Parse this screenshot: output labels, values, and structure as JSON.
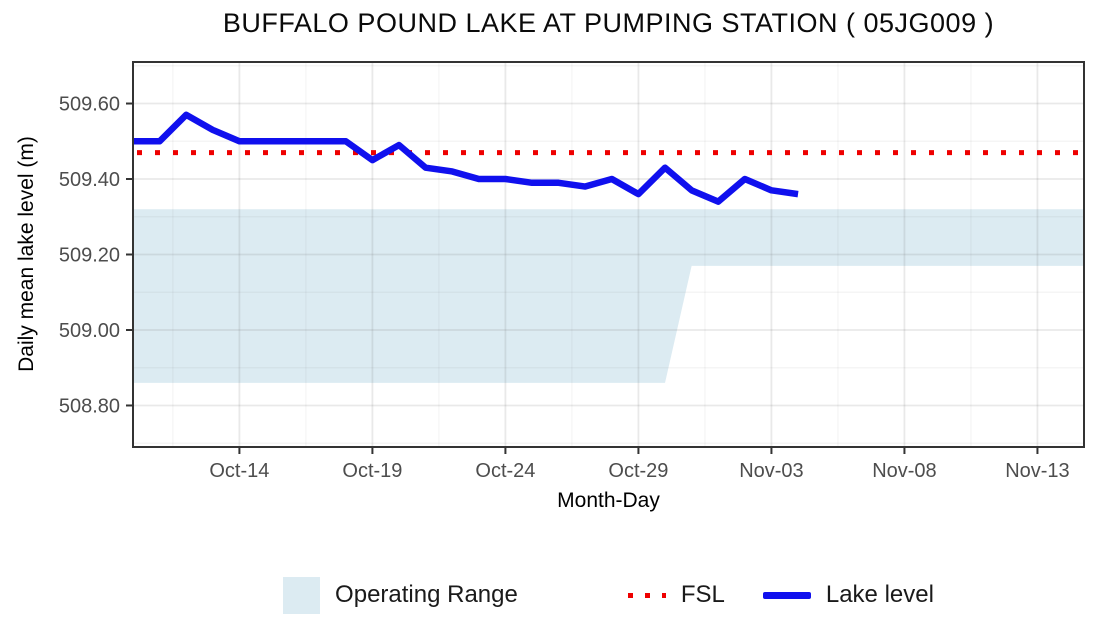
{
  "chart_data": {
    "type": "line",
    "title": "BUFFALO POUND LAKE AT PUMPING STATION ( 05JG009 )",
    "xlabel": "Month-Day",
    "ylabel": "Daily mean lake level (m)",
    "ylim": [
      508.69,
      509.71
    ],
    "x_domain_days": [
      0,
      35.75
    ],
    "grid": {
      "major": true,
      "minor": true
    },
    "x_ticks": [
      {
        "label": "Oct-14",
        "day": 4
      },
      {
        "label": "Oct-19",
        "day": 9
      },
      {
        "label": "Oct-24",
        "day": 14
      },
      {
        "label": "Oct-29",
        "day": 19
      },
      {
        "label": "Nov-03",
        "day": 24
      },
      {
        "label": "Nov-08",
        "day": 29
      },
      {
        "label": "Nov-13",
        "day": 34
      }
    ],
    "x_minor_days": [
      1.5,
      6.5,
      11.5,
      16.5,
      21.5,
      26.5,
      31.5
    ],
    "y_ticks": [
      {
        "label": "509.60",
        "value": 509.6
      },
      {
        "label": "509.40",
        "value": 509.4
      },
      {
        "label": "509.20",
        "value": 509.2
      },
      {
        "label": "509.00",
        "value": 509.0
      },
      {
        "label": "508.80",
        "value": 508.8
      }
    ],
    "y_minor": [
      508.7,
      508.9,
      509.1,
      509.3,
      509.5,
      509.7
    ],
    "fsl": {
      "label": "FSL",
      "value": 509.47,
      "color": "#ee0000"
    },
    "operating_range": {
      "label": "Operating Range",
      "color": "#dcebf2",
      "upper_points": [
        {
          "day": 0,
          "value": 509.32
        },
        {
          "day": 35.75,
          "value": 509.32
        }
      ],
      "lower_points": [
        {
          "day": 0,
          "value": 508.86
        },
        {
          "day": 20,
          "value": 508.86
        },
        {
          "day": 21,
          "value": 509.17
        },
        {
          "day": 35.75,
          "value": 509.17
        }
      ]
    },
    "series": [
      {
        "name": "Lake level",
        "color": "#1010ee",
        "points": [
          {
            "day": 0,
            "date": "Oct-10",
            "value": 509.5
          },
          {
            "day": 1,
            "date": "Oct-11",
            "value": 509.5
          },
          {
            "day": 2,
            "date": "Oct-12",
            "value": 509.57
          },
          {
            "day": 3,
            "date": "Oct-13",
            "value": 509.53
          },
          {
            "day": 4,
            "date": "Oct-14",
            "value": 509.5
          },
          {
            "day": 5,
            "date": "Oct-15",
            "value": 509.5
          },
          {
            "day": 6,
            "date": "Oct-16",
            "value": 509.5
          },
          {
            "day": 7,
            "date": "Oct-17",
            "value": 509.5
          },
          {
            "day": 8,
            "date": "Oct-18",
            "value": 509.5
          },
          {
            "day": 9,
            "date": "Oct-19",
            "value": 509.45
          },
          {
            "day": 10,
            "date": "Oct-20",
            "value": 509.49
          },
          {
            "day": 11,
            "date": "Oct-21",
            "value": 509.43
          },
          {
            "day": 12,
            "date": "Oct-22",
            "value": 509.42
          },
          {
            "day": 13,
            "date": "Oct-23",
            "value": 509.4
          },
          {
            "day": 14,
            "date": "Oct-24",
            "value": 509.4
          },
          {
            "day": 15,
            "date": "Oct-25",
            "value": 509.39
          },
          {
            "day": 16,
            "date": "Oct-26",
            "value": 509.39
          },
          {
            "day": 17,
            "date": "Oct-27",
            "value": 509.38
          },
          {
            "day": 18,
            "date": "Oct-28",
            "value": 509.4
          },
          {
            "day": 19,
            "date": "Oct-29",
            "value": 509.36
          },
          {
            "day": 20,
            "date": "Oct-30",
            "value": 509.43
          },
          {
            "day": 21,
            "date": "Oct-31",
            "value": 509.37
          },
          {
            "day": 22,
            "date": "Nov-01",
            "value": 509.34
          },
          {
            "day": 23,
            "date": "Nov-02",
            "value": 509.4
          },
          {
            "day": 24,
            "date": "Nov-03",
            "value": 509.37
          },
          {
            "day": 25,
            "date": "Nov-04",
            "value": 509.36
          }
        ]
      }
    ],
    "legend": [
      {
        "label": "Operating Range",
        "swatch": "fill"
      },
      {
        "label": "FSL",
        "swatch": "dots"
      },
      {
        "label": "Lake level",
        "swatch": "line"
      }
    ],
    "legend_position": "bottom"
  }
}
